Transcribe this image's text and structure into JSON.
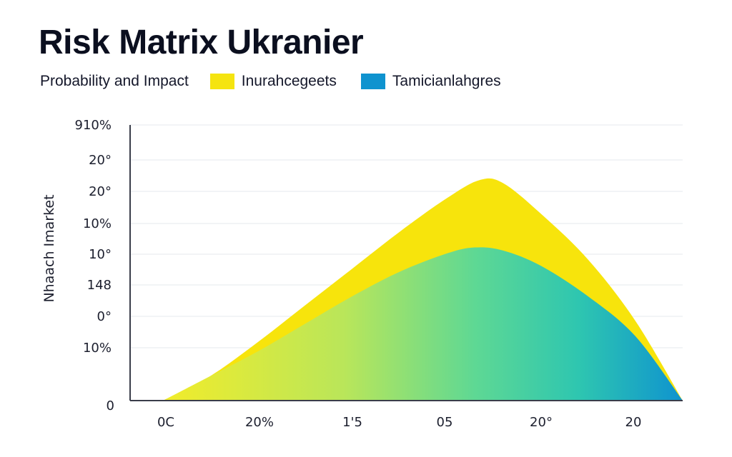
{
  "title": "Risk Matrix Ukranier",
  "subtitle": "Probability and Impact",
  "legend": [
    {
      "name": "Inurahcegeets",
      "color": "#f5e410"
    },
    {
      "name": "Tamicianlahgres",
      "color": "#0f93cf"
    }
  ],
  "chart_data": {
    "type": "area",
    "title": "Risk Matrix Ukranier",
    "subtitle": "Probability and Impact",
    "ylabel": "Nhaach Imarket",
    "xlabel": "",
    "x_tick_labels": [
      "0C",
      "20%",
      "1'5",
      "05",
      "20°",
      "20"
    ],
    "y_tick_labels": [
      "0",
      "10%",
      "0°",
      "148",
      "10°",
      "10%",
      "20°",
      "20°",
      "910%"
    ],
    "ylim": [
      0,
      9
    ],
    "xlim": [
      0,
      5.5
    ],
    "grid": true,
    "legend_position": "top",
    "series": [
      {
        "name": "Inurahcegeets",
        "color": "#f5e410",
        "x": [
          0,
          0.5,
          1.0,
          1.5,
          2.0,
          2.5,
          3.0,
          3.35,
          3.6,
          4.0,
          4.5,
          5.0,
          5.5
        ],
        "y": [
          0,
          0.8,
          1.9,
          3.1,
          4.3,
          5.5,
          6.6,
          7.2,
          7.1,
          6.1,
          4.6,
          2.6,
          0
        ]
      },
      {
        "name": "Tamicianlahgres",
        "color": "#0f93cf",
        "x": [
          0,
          0.5,
          1.0,
          1.5,
          2.0,
          2.5,
          3.0,
          3.3,
          3.6,
          4.0,
          4.5,
          5.0,
          5.5
        ],
        "y": [
          0,
          0.8,
          1.6,
          2.5,
          3.4,
          4.2,
          4.8,
          5.0,
          4.9,
          4.4,
          3.4,
          2.1,
          0
        ]
      }
    ]
  }
}
